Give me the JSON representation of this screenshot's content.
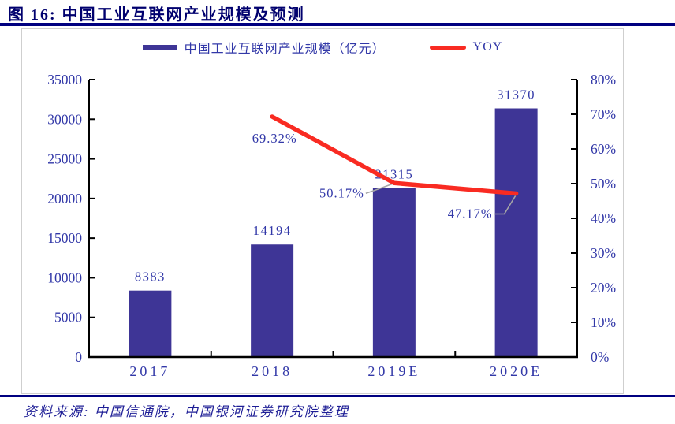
{
  "title": {
    "text": "图 16: 中国工业互联网产业规模及预测"
  },
  "legend": {
    "bar_label": "中国工业互联网产业规模（亿元）",
    "line_label": "YOY"
  },
  "footer": {
    "source_text": "资料来源: 中国信通院，中国银河证券研究院整理"
  },
  "colors": {
    "bar": "#3E3596",
    "line": "#F92B22",
    "label_text": "#3238A8",
    "title_navy": "#00006E",
    "rule_navy": "#000080",
    "axis": "#000000",
    "leader": "#A6A6A6",
    "frame": "#CFCFCF"
  },
  "chart_data": {
    "type": "bar",
    "subtype": "bar+line-combo",
    "categories": [
      "2017",
      "2018",
      "2019E",
      "2020E"
    ],
    "series": [
      {
        "name": "中国工业互联网产业规模（亿元）",
        "type": "bar",
        "axis": "left",
        "values": [
          8383,
          14194,
          21315,
          31370
        ],
        "labels": [
          "8383",
          "14194",
          "21315",
          "31370"
        ]
      },
      {
        "name": "YOY",
        "type": "line",
        "axis": "right",
        "values": [
          null,
          69.32,
          50.17,
          47.17
        ],
        "labels": [
          null,
          "69.32%",
          "50.17%",
          "47.17%"
        ]
      }
    ],
    "left_axis": {
      "min": 0,
      "max": 35000,
      "step": 5000,
      "tick_labels": [
        "0",
        "5000",
        "10000",
        "15000",
        "20000",
        "25000",
        "30000",
        "35000"
      ]
    },
    "right_axis": {
      "min": 0,
      "max": 80,
      "step": 10,
      "tick_labels": [
        "0%",
        "10%",
        "20%",
        "30%",
        "40%",
        "50%",
        "60%",
        "70%",
        "80%"
      ]
    },
    "grid": false,
    "legend_position": "top"
  }
}
